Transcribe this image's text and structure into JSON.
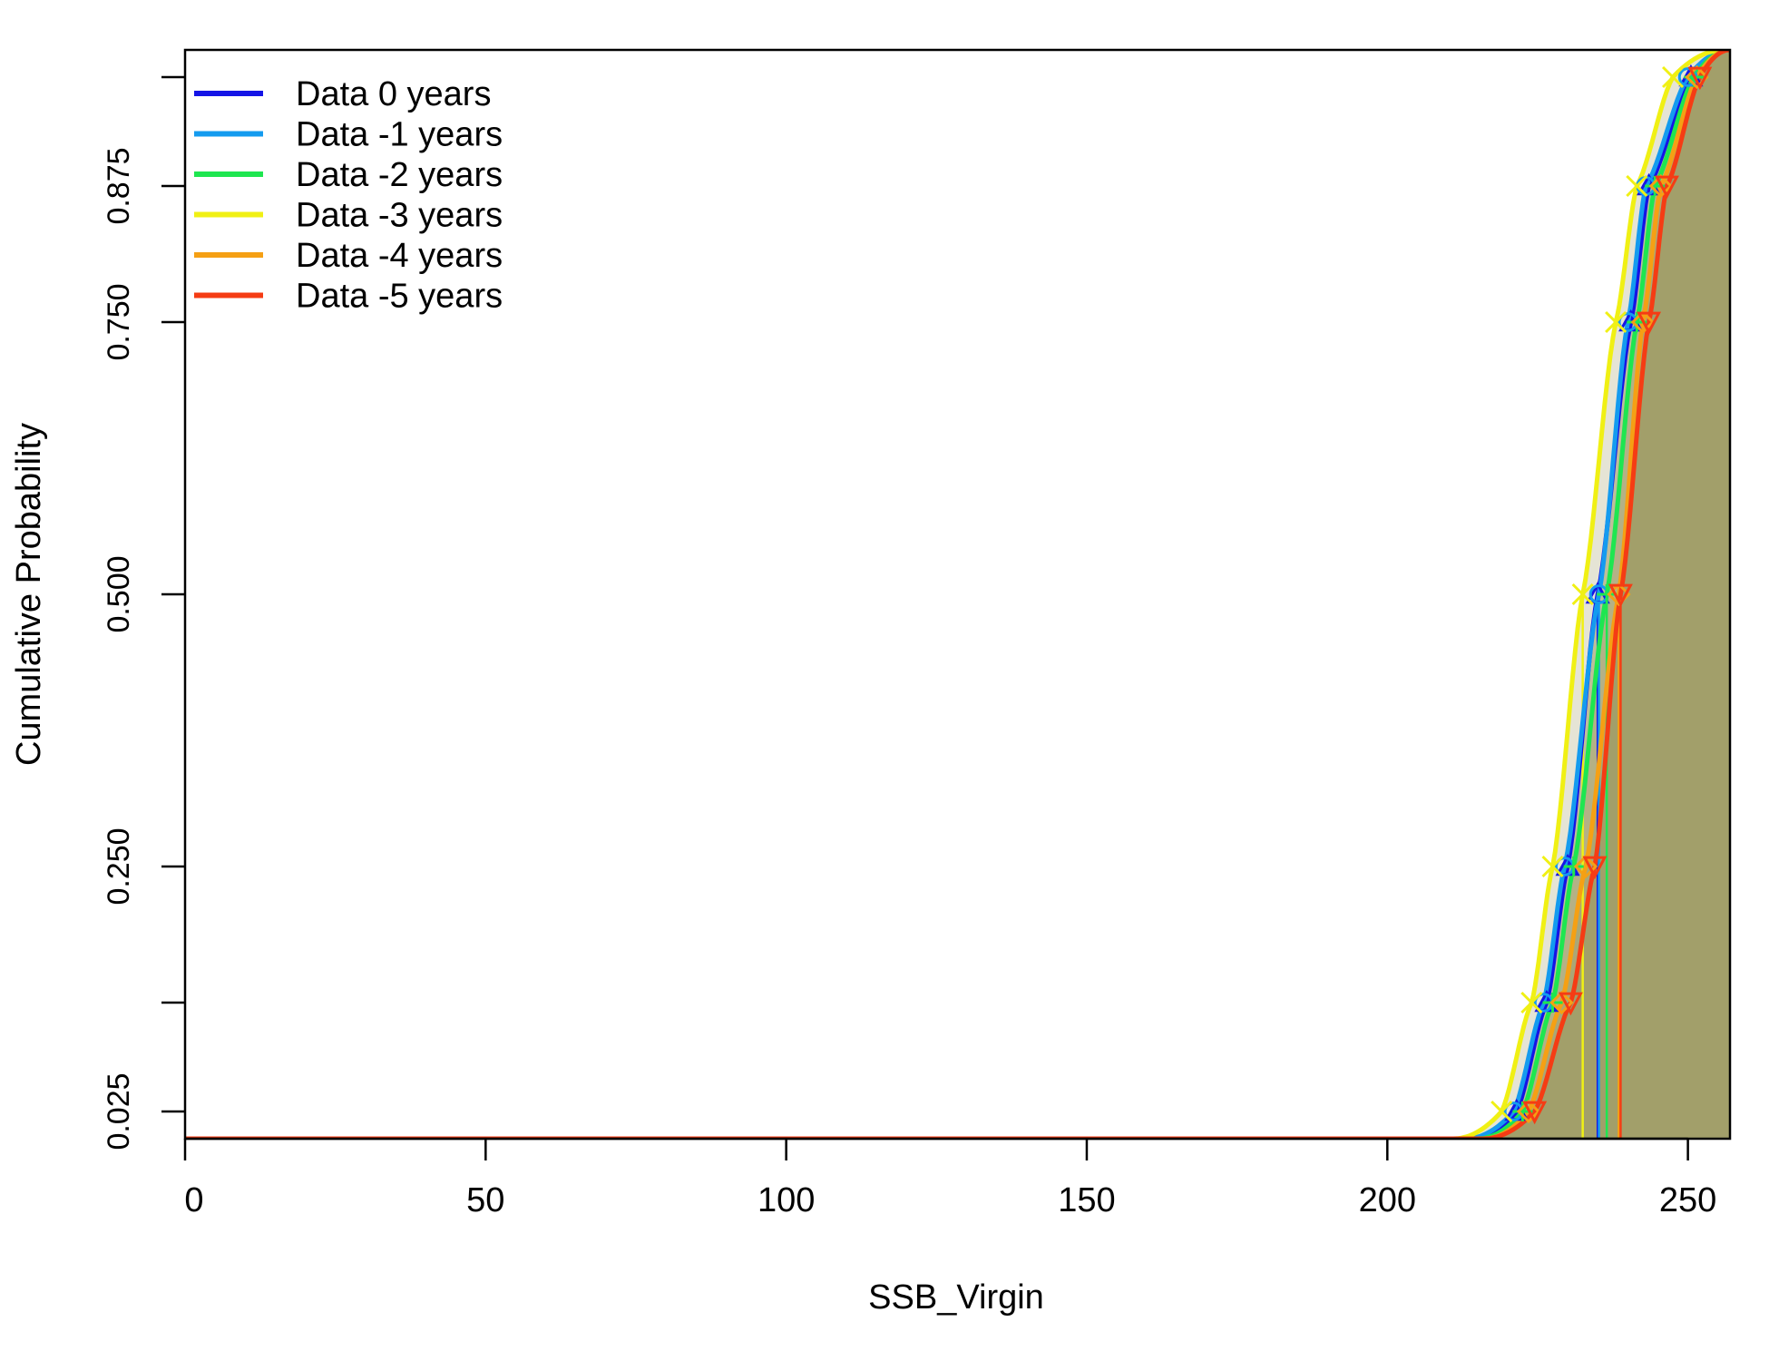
{
  "chart_data": {
    "type": "line",
    "title": "",
    "xlabel": "SSB_Virgin",
    "ylabel": "Cumulative Probability",
    "xlim": [
      0,
      257
    ],
    "ylim": [
      0,
      1
    ],
    "x_ticks": [
      {
        "value": 0,
        "label": "0"
      },
      {
        "value": 50,
        "label": "50"
      },
      {
        "value": 100,
        "label": "100"
      },
      {
        "value": 150,
        "label": "150"
      },
      {
        "value": 200,
        "label": "200"
      },
      {
        "value": 250,
        "label": "250"
      }
    ],
    "y_ticks": [
      {
        "value": 0.025,
        "label": "0.025"
      },
      {
        "value": 0.125,
        "label": ""
      },
      {
        "value": 0.25,
        "label": "0.250"
      },
      {
        "value": 0.5,
        "label": "0.500"
      },
      {
        "value": 0.75,
        "label": "0.750"
      },
      {
        "value": 0.875,
        "label": "0.875"
      },
      {
        "value": 0.975,
        "label": ""
      }
    ],
    "quantile_probs": [
      0.025,
      0.125,
      0.25,
      0.5,
      0.75,
      0.875,
      0.975
    ],
    "legend_position": "top-left",
    "grid": false,
    "series": [
      {
        "name": "Data 0 years",
        "color": "#1414e6",
        "marker": "triangle-up",
        "min": 214,
        "max": 257,
        "quantiles": [
          221.5,
          226.5,
          230.0,
          235.0,
          240.5,
          243.5,
          250.5
        ]
      },
      {
        "name": "Data -1 years",
        "color": "#149bef",
        "marker": "circle",
        "min": 213,
        "max": 257,
        "quantiles": [
          221.0,
          226.0,
          229.5,
          235.2,
          240.0,
          243.0,
          250.0
        ]
      },
      {
        "name": "Data -2 years",
        "color": "#1ee650",
        "marker": "plus",
        "min": 215,
        "max": 257,
        "quantiles": [
          222.5,
          227.5,
          231.0,
          236.5,
          241.5,
          244.5,
          251.0
        ]
      },
      {
        "name": "Data -3 years",
        "color": "#f0f014",
        "marker": "cross",
        "min": 211,
        "max": 256,
        "quantiles": [
          219.0,
          224.0,
          227.5,
          232.5,
          238.0,
          241.5,
          247.5
        ]
      },
      {
        "name": "Data -4 years",
        "color": "#f5a014",
        "marker": "diamond",
        "min": 216,
        "max": 257,
        "quantiles": [
          223.5,
          229.0,
          233.0,
          238.5,
          242.5,
          245.5,
          251.5
        ]
      },
      {
        "name": "Data -5 years",
        "color": "#f53c14",
        "marker": "triangle-down",
        "min": 216,
        "max": 257,
        "quantiles": [
          224.5,
          230.5,
          234.5,
          238.8,
          243.5,
          246.5,
          252.0
        ]
      }
    ]
  }
}
